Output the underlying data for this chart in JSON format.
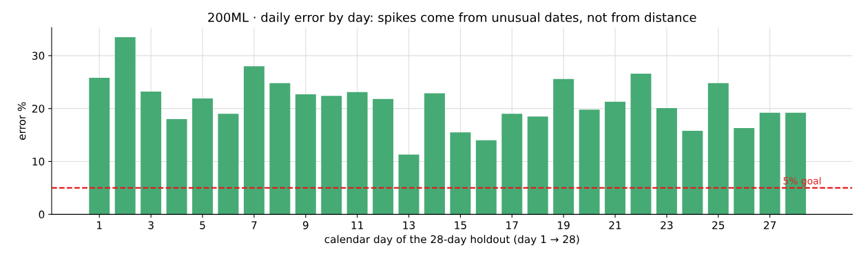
{
  "chart_data": {
    "type": "bar",
    "title": "200ML · daily error by day: spikes come from unusual dates, not from distance",
    "xlabel": "calendar day of the 28-day holdout (day 1 → 28)",
    "ylabel": "error %",
    "x": [
      1,
      2,
      3,
      4,
      5,
      6,
      7,
      8,
      9,
      10,
      11,
      12,
      13,
      14,
      15,
      16,
      17,
      18,
      19,
      20,
      21,
      22,
      23,
      24,
      25,
      26,
      27,
      28
    ],
    "series": [
      {
        "color": "#46aa74",
        "values": [
          25.8,
          33.5,
          23.2,
          18.0,
          21.9,
          19.0,
          28.0,
          24.8,
          22.7,
          22.4,
          23.1,
          21.8,
          11.3,
          22.9,
          15.5,
          14.0,
          19.0,
          18.5,
          25.6,
          19.8,
          21.3,
          26.6,
          20.1,
          15.8,
          24.8,
          16.3,
          19.2,
          19.2
        ]
      }
    ],
    "xlim": [
      -0.85,
      30.2
    ],
    "xticks": [
      1,
      3,
      5,
      7,
      9,
      11,
      13,
      15,
      17,
      19,
      21,
      23,
      25,
      27
    ],
    "ylim": [
      0,
      35.3
    ],
    "yticks": [
      0,
      10,
      20,
      30
    ],
    "ref_lines": [
      {
        "axis": "y",
        "value": 5,
        "label": "5% goal",
        "color": "#e41a1c",
        "line_style": "dashed"
      }
    ],
    "grid": true
  }
}
